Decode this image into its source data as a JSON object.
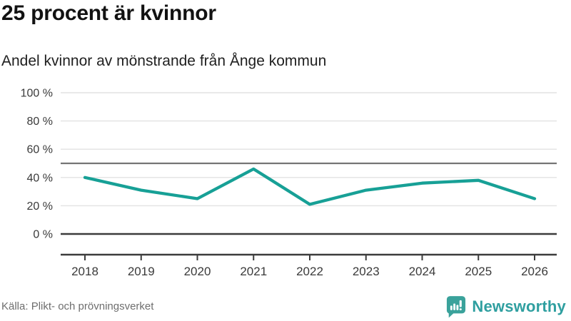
{
  "header": {
    "title": "25 procent är kvinnor",
    "subtitle": "Andel kvinnor av mönstrande från Ånge kommun"
  },
  "chart_data": {
    "type": "line",
    "title": "25 procent är kvinnor",
    "subtitle": "Andel kvinnor av mönstrande från Ånge kommun",
    "x": [
      2018,
      2019,
      2020,
      2021,
      2022,
      2023,
      2024,
      2025,
      2026
    ],
    "series": [
      {
        "name": "Andel kvinnor av mönstrande",
        "values": [
          40,
          31,
          25,
          46,
          21,
          31,
          36,
          38,
          25
        ]
      }
    ],
    "xlabel": "",
    "ylabel": "",
    "ylim": [
      0,
      100
    ],
    "yticks": [
      0,
      20,
      40,
      60,
      80,
      100
    ],
    "ytick_suffix": " %",
    "reference_line": 50,
    "grid": true,
    "legend_position": "none",
    "line_color": "#17a096"
  },
  "footer": {
    "source": "Källa: Plikt- och prövningsverket",
    "brand": "Newsworthy"
  },
  "colors": {
    "accent_teal": "#17a096",
    "brand_teal": "#2f9fa0",
    "brand_icon": "#3aa29b",
    "grid": "#e2e2e2",
    "ref_line": "#757575",
    "axis": "#3c3c3c",
    "tick_label": "#3a3a3a",
    "source_text": "#6e6e6e"
  }
}
